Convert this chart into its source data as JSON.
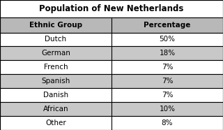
{
  "title": "Population of New Netherlands",
  "col1_header": "Ethnic Group",
  "col2_header": "Percentage",
  "rows": [
    [
      "Dutch",
      "50%"
    ],
    [
      "German",
      "18%"
    ],
    [
      "French",
      "7%"
    ],
    [
      "Spanish",
      "7%"
    ],
    [
      "Danish",
      "7%"
    ],
    [
      "African",
      "10%"
    ],
    [
      "Other",
      "8%"
    ]
  ],
  "shaded_rows": [
    1,
    3,
    5
  ],
  "row_bg_shaded": "#c8c8c8",
  "row_bg_white": "#ffffff",
  "header_bg": "#b8b8b8",
  "title_bg": "#ffffff",
  "border_color": "#000000",
  "title_fontsize": 8.5,
  "header_fontsize": 7.5,
  "cell_fontsize": 7.5,
  "col_split": 0.5
}
